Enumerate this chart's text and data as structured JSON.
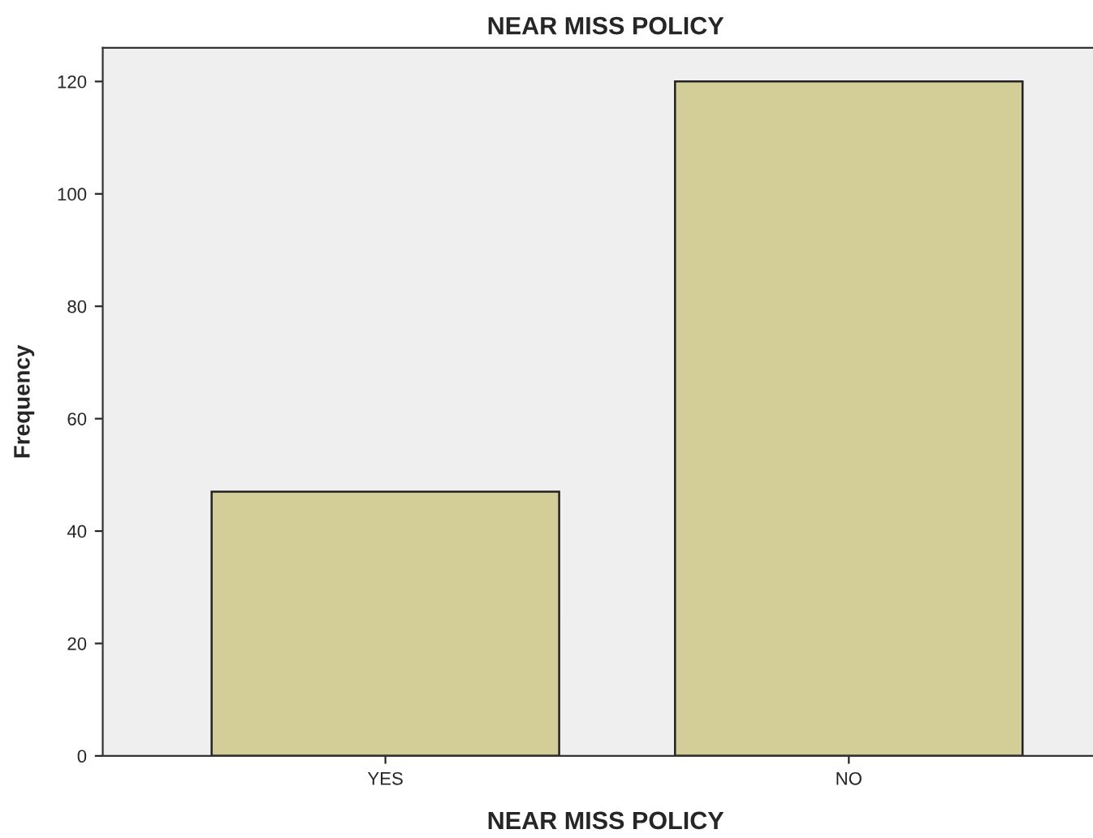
{
  "chart_data": {
    "type": "bar",
    "title": "NEAR MISS POLICY",
    "xlabel": "NEAR MISS POLICY",
    "ylabel": "Frequency",
    "categories": [
      "YES",
      "NO"
    ],
    "values": [
      47,
      120
    ],
    "color": "#d3ce97",
    "ylim": [
      0,
      126
    ],
    "yticks": [
      0,
      20,
      40,
      60,
      80,
      100,
      120
    ],
    "grid": false,
    "legend": false
  }
}
